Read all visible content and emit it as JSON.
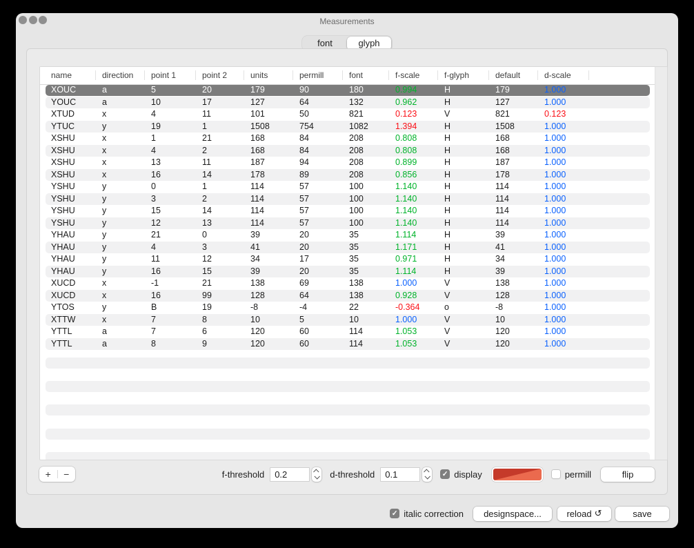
{
  "window": {
    "title": "Measurements"
  },
  "tabs": {
    "items": [
      {
        "label": "font",
        "selected": false
      },
      {
        "label": "glyph",
        "selected": true
      }
    ]
  },
  "colors": {
    "green": "#00b32a",
    "red": "#fb0f16",
    "blue": "#0a61fe",
    "selection_gray": "#7c7c7c"
  },
  "table": {
    "columns": [
      "name",
      "direction",
      "point 1",
      "point 2",
      "units",
      "permill",
      "font",
      "f-scale",
      "f-glyph",
      "default",
      "d-scale"
    ],
    "rows": [
      {
        "cells": [
          "XOUC",
          "a",
          "5",
          "20",
          "179",
          "90",
          "180",
          "0.994",
          "H",
          "179",
          "1.000"
        ],
        "f_color": "green",
        "d_color": "blue",
        "selected": true
      },
      {
        "cells": [
          "YOUC",
          "a",
          "10",
          "17",
          "127",
          "64",
          "132",
          "0.962",
          "H",
          "127",
          "1.000"
        ],
        "f_color": "green",
        "d_color": "blue",
        "selected": false
      },
      {
        "cells": [
          "XTUD",
          "x",
          "4",
          "11",
          "101",
          "50",
          "821",
          "0.123",
          "V",
          "821",
          "0.123"
        ],
        "f_color": "red",
        "d_color": "red",
        "selected": false
      },
      {
        "cells": [
          "YTUC",
          "y",
          "19",
          "1",
          "1508",
          "754",
          "1082",
          "1.394",
          "H",
          "1508",
          "1.000"
        ],
        "f_color": "red",
        "d_color": "blue",
        "selected": false
      },
      {
        "cells": [
          "XSHU",
          "x",
          "1",
          "21",
          "168",
          "84",
          "208",
          "0.808",
          "H",
          "168",
          "1.000"
        ],
        "f_color": "green",
        "d_color": "blue",
        "selected": false
      },
      {
        "cells": [
          "XSHU",
          "x",
          "4",
          "2",
          "168",
          "84",
          "208",
          "0.808",
          "H",
          "168",
          "1.000"
        ],
        "f_color": "green",
        "d_color": "blue",
        "selected": false
      },
      {
        "cells": [
          "XSHU",
          "x",
          "13",
          "11",
          "187",
          "94",
          "208",
          "0.899",
          "H",
          "187",
          "1.000"
        ],
        "f_color": "green",
        "d_color": "blue",
        "selected": false
      },
      {
        "cells": [
          "XSHU",
          "x",
          "16",
          "14",
          "178",
          "89",
          "208",
          "0.856",
          "H",
          "178",
          "1.000"
        ],
        "f_color": "green",
        "d_color": "blue",
        "selected": false
      },
      {
        "cells": [
          "YSHU",
          "y",
          "0",
          "1",
          "114",
          "57",
          "100",
          "1.140",
          "H",
          "114",
          "1.000"
        ],
        "f_color": "green",
        "d_color": "blue",
        "selected": false
      },
      {
        "cells": [
          "YSHU",
          "y",
          "3",
          "2",
          "114",
          "57",
          "100",
          "1.140",
          "H",
          "114",
          "1.000"
        ],
        "f_color": "green",
        "d_color": "blue",
        "selected": false
      },
      {
        "cells": [
          "YSHU",
          "y",
          "15",
          "14",
          "114",
          "57",
          "100",
          "1.140",
          "H",
          "114",
          "1.000"
        ],
        "f_color": "green",
        "d_color": "blue",
        "selected": false
      },
      {
        "cells": [
          "YSHU",
          "y",
          "12",
          "13",
          "114",
          "57",
          "100",
          "1.140",
          "H",
          "114",
          "1.000"
        ],
        "f_color": "green",
        "d_color": "blue",
        "selected": false
      },
      {
        "cells": [
          "YHAU",
          "y",
          "21",
          "0",
          "39",
          "20",
          "35",
          "1.114",
          "H",
          "39",
          "1.000"
        ],
        "f_color": "green",
        "d_color": "blue",
        "selected": false
      },
      {
        "cells": [
          "YHAU",
          "y",
          "4",
          "3",
          "41",
          "20",
          "35",
          "1.171",
          "H",
          "41",
          "1.000"
        ],
        "f_color": "green",
        "d_color": "blue",
        "selected": false
      },
      {
        "cells": [
          "YHAU",
          "y",
          "11",
          "12",
          "34",
          "17",
          "35",
          "0.971",
          "H",
          "34",
          "1.000"
        ],
        "f_color": "green",
        "d_color": "blue",
        "selected": false
      },
      {
        "cells": [
          "YHAU",
          "y",
          "16",
          "15",
          "39",
          "20",
          "35",
          "1.114",
          "H",
          "39",
          "1.000"
        ],
        "f_color": "green",
        "d_color": "blue",
        "selected": false
      },
      {
        "cells": [
          "XUCD",
          "x",
          "-1",
          "21",
          "138",
          "69",
          "138",
          "1.000",
          "V",
          "138",
          "1.000"
        ],
        "f_color": "blue",
        "d_color": "blue",
        "selected": false
      },
      {
        "cells": [
          "XUCD",
          "x",
          "16",
          "99",
          "128",
          "64",
          "138",
          "0.928",
          "V",
          "128",
          "1.000"
        ],
        "f_color": "green",
        "d_color": "blue",
        "selected": false
      },
      {
        "cells": [
          "YTOS",
          "y",
          "B",
          "19",
          "-8",
          "-4",
          "22",
          "-0.364",
          "o",
          "-8",
          "1.000"
        ],
        "f_color": "red",
        "d_color": "blue",
        "selected": false
      },
      {
        "cells": [
          "XTTW",
          "x",
          "7",
          "8",
          "10",
          "5",
          "10",
          "1.000",
          "V",
          "10",
          "1.000"
        ],
        "f_color": "blue",
        "d_color": "blue",
        "selected": false
      },
      {
        "cells": [
          "YTTL",
          "a",
          "7",
          "6",
          "120",
          "60",
          "114",
          "1.053",
          "V",
          "120",
          "1.000"
        ],
        "f_color": "green",
        "d_color": "blue",
        "selected": false
      },
      {
        "cells": [
          "YTTL",
          "a",
          "8",
          "9",
          "120",
          "60",
          "114",
          "1.053",
          "V",
          "120",
          "1.000"
        ],
        "f_color": "green",
        "d_color": "blue",
        "selected": false
      }
    ]
  },
  "controls": {
    "add_label": "+",
    "remove_label": "−",
    "f_threshold": {
      "label": "f-threshold",
      "value": "0.2"
    },
    "d_threshold": {
      "label": "d-threshold",
      "value": "0.1"
    },
    "display": {
      "label": "display",
      "checked": true
    },
    "color_well": {
      "color_top_left": "#c53a2a",
      "color_bottom_right": "#eb6a4e"
    },
    "permill": {
      "label": "permill",
      "checked": false
    },
    "flip_label": "flip"
  },
  "footer": {
    "italic_correction": {
      "label": "italic correction",
      "checked": true
    },
    "designspace_label": "designspace...",
    "reload_label": "reload",
    "reload_icon": "↺",
    "save_label": "save"
  }
}
